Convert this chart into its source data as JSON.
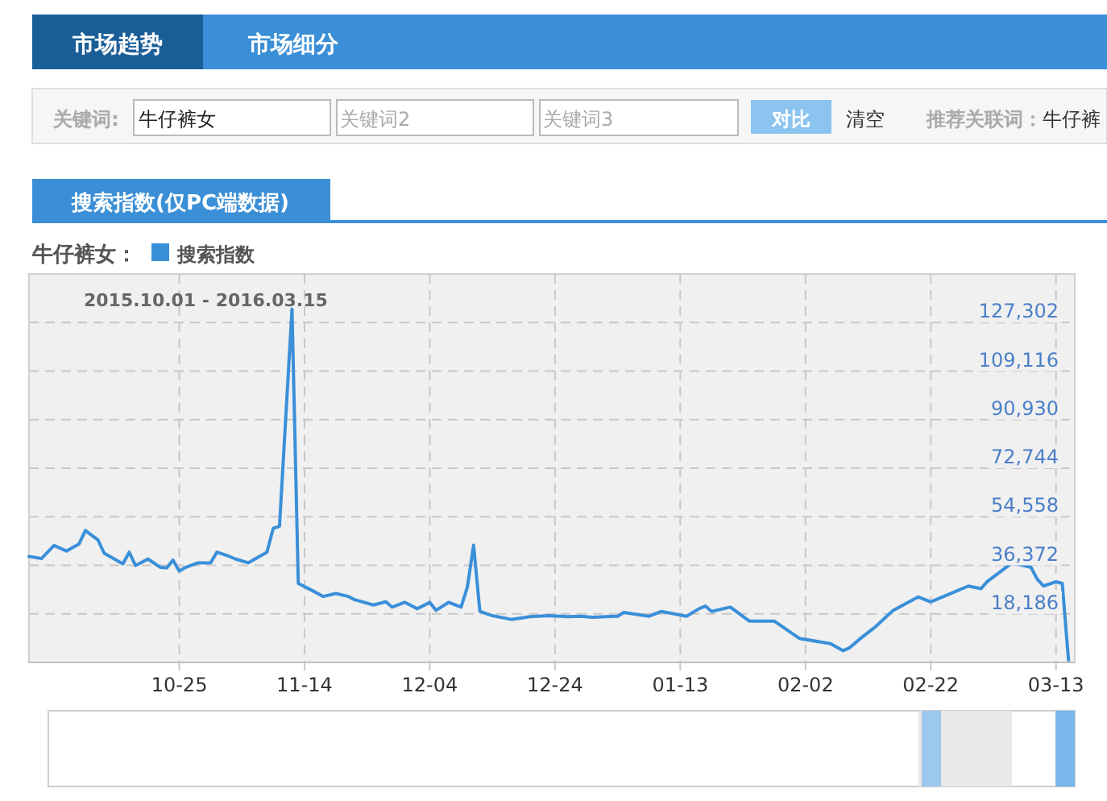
{
  "chart_data": {
    "type": "line",
    "title": "搜索指数(仅PC端数据)",
    "legend_title": "牛仔裤女：",
    "legend": "top left",
    "grid": true,
    "annotations": [
      "市场趋势",
      "市场细分",
      "关键词:",
      "牛仔裤女",
      "关键词2",
      "关键词3",
      "对比",
      "清空",
      "推荐关联词：",
      "牛仔裤",
      "2015.10.01 - 2016.03.15"
    ],
    "xlim": [
      "2015-10-01",
      "2016-03-16"
    ],
    "xticks": [
      {
        "value": "2015-10-25",
        "label": "10-25"
      },
      {
        "value": "2015-11-14",
        "label": "11-14"
      },
      {
        "value": "2015-12-04",
        "label": "12-04"
      },
      {
        "value": "2015-12-24",
        "label": "12-24"
      },
      {
        "value": "2016-01-13",
        "label": "01-13"
      },
      {
        "value": "2016-02-02",
        "label": "02-02"
      },
      {
        "value": "2016-02-22",
        "label": "02-22"
      },
      {
        "value": "2016-03-13",
        "label": "03-13"
      }
    ],
    "ylim": [
      0,
      145488
    ],
    "yticks": [
      {
        "value": 18186,
        "label": "18,186"
      },
      {
        "value": 36372,
        "label": "36,372"
      },
      {
        "value": 54558,
        "label": "54,558"
      },
      {
        "value": 72744,
        "label": "72,744"
      },
      {
        "value": 90930,
        "label": "90,930"
      },
      {
        "value": 109116,
        "label": "109,116"
      },
      {
        "value": 127302,
        "label": "127,302"
      }
    ],
    "series": [
      {
        "name": "搜索指数",
        "color": "#3a8fd9",
        "x": [
          "2015-10-01",
          "2015-10-03",
          "2015-10-05",
          "2015-10-07",
          "2015-10-09",
          "2015-10-10",
          "2015-10-12",
          "2015-10-13",
          "2015-10-16",
          "2015-10-17",
          "2015-10-18",
          "2015-10-20",
          "2015-10-22",
          "2015-10-23",
          "2015-10-24",
          "2015-10-25",
          "2015-10-26",
          "2015-10-28",
          "2015-10-30",
          "2015-10-31",
          "2015-11-02",
          "2015-11-03",
          "2015-11-05",
          "2015-11-08",
          "2015-11-09",
          "2015-11-10",
          "2015-11-12",
          "2015-11-13",
          "2015-11-15",
          "2015-11-17",
          "2015-11-19",
          "2015-11-21",
          "2015-11-22",
          "2015-11-25",
          "2015-11-27",
          "2015-11-28",
          "2015-11-30",
          "2015-12-02",
          "2015-12-04",
          "2015-12-05",
          "2015-12-07",
          "2015-12-09",
          "2015-12-10",
          "2015-12-11",
          "2015-12-12",
          "2015-12-14",
          "2015-12-17",
          "2015-12-20",
          "2015-12-23",
          "2015-12-26",
          "2015-12-28",
          "2015-12-30",
          "2016-01-03",
          "2016-01-04",
          "2016-01-08",
          "2016-01-10",
          "2016-01-14",
          "2016-01-16",
          "2016-01-17",
          "2016-01-18",
          "2016-01-21",
          "2016-01-24",
          "2016-01-28",
          "2016-02-01",
          "2016-02-06",
          "2016-02-08",
          "2016-02-09",
          "2016-02-11",
          "2016-02-13",
          "2016-02-16",
          "2016-02-20",
          "2016-02-22",
          "2016-02-25",
          "2016-02-28",
          "2016-03-01",
          "2016-03-02",
          "2016-03-06",
          "2016-03-09",
          "2016-03-10",
          "2016-03-11",
          "2016-03-13",
          "2016-03-14",
          "2016-03-15"
        ],
        "values": [
          39700,
          38900,
          43800,
          41700,
          44400,
          49400,
          45900,
          40900,
          36900,
          41300,
          36300,
          38700,
          35600,
          35400,
          38300,
          34200,
          35600,
          37300,
          37300,
          41300,
          39700,
          38700,
          37300,
          41300,
          50200,
          51000,
          132300,
          29600,
          27200,
          24700,
          25800,
          24700,
          23500,
          21500,
          22700,
          20700,
          22500,
          20100,
          22500,
          19500,
          22500,
          20700,
          28200,
          43900,
          19100,
          17500,
          16100,
          17100,
          17500,
          17100,
          17300,
          16900,
          17300,
          18700,
          17300,
          19100,
          17300,
          20100,
          21100,
          19100,
          20700,
          15500,
          15500,
          9000,
          7000,
          4400,
          5400,
          9400,
          13000,
          19500,
          24500,
          22700,
          25600,
          28600,
          27600,
          30200,
          37300,
          35600,
          31200,
          28600,
          30200,
          29600,
          900
        ]
      }
    ]
  }
}
